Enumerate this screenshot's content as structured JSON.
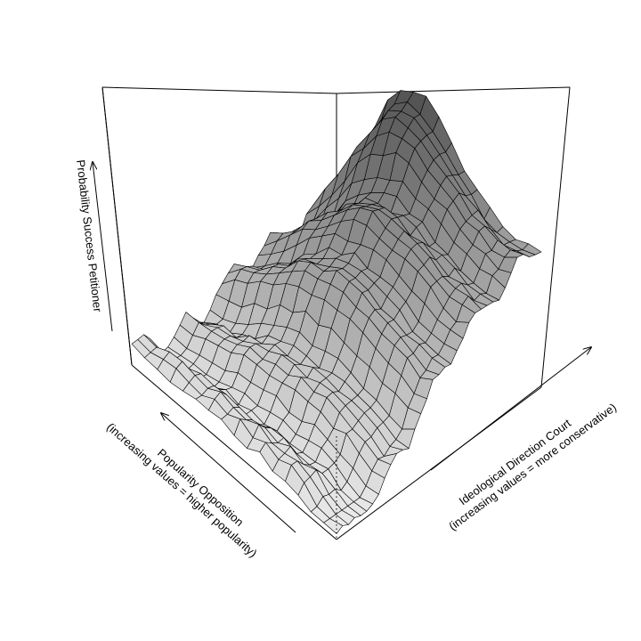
{
  "chart_data": {
    "type": "surface3d",
    "title": "",
    "zlabel": "Probability Success Petitioner",
    "xlabel_line1": "Ideological Direction Court",
    "xlabel_line2": "(increasing values = more conservative)",
    "ylabel_line1": "Popularity Opposition",
    "ylabel_line2": "(increasing values = higher popularity)",
    "shading": "grayscale",
    "axis_ticks": false,
    "grid": false,
    "box": true,
    "x_range": [
      0,
      1
    ],
    "y_range": [
      0,
      1
    ],
    "zlim": [
      0,
      1
    ]
  }
}
